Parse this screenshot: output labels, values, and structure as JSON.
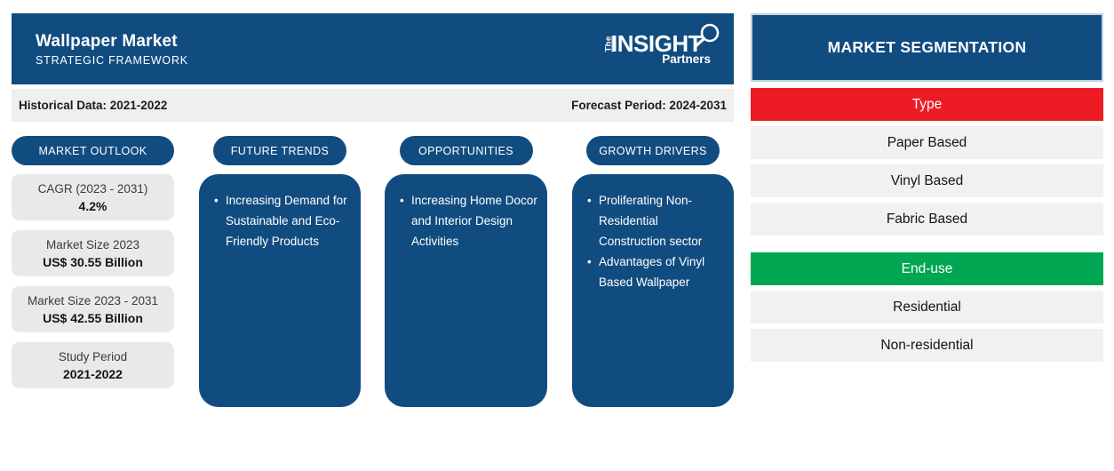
{
  "header": {
    "title": "Wallpaper Market",
    "subtitle": "STRATEGIC FRAMEWORK",
    "logo": {
      "the": "The",
      "insight": "INSIGHT",
      "partners": "Partners"
    }
  },
  "period_bar": {
    "historical": "Historical Data: 2021-2022",
    "forecast": "Forecast Period: 2024-2031"
  },
  "columns": {
    "market_outlook": {
      "label": "MARKET OUTLOOK",
      "stats": [
        {
          "label": "CAGR (2023 - 2031)",
          "value": "4.2%"
        },
        {
          "label": "Market Size 2023",
          "value": "US$ 30.55 Billion"
        },
        {
          "label": "Market Size 2023 - 2031",
          "value": "US$ 42.55 Billion"
        },
        {
          "label": "Study Period",
          "value": "2021-2022"
        }
      ]
    },
    "future_trends": {
      "label": "FUTURE TRENDS",
      "items": [
        "Increasing Demand for Sustainable and Eco-Friendly Products"
      ]
    },
    "opportunities": {
      "label": "OPPORTUNITIES",
      "items": [
        "Increasing Home Docor and Interior Design Activities"
      ]
    },
    "growth_drivers": {
      "label": "GROWTH DRIVERS",
      "items": [
        "Proliferating Non-Residential Construction sector",
        "Advantages of Vinyl Based Wallpaper"
      ]
    }
  },
  "segmentation": {
    "title": "MARKET SEGMENTATION",
    "groups": [
      {
        "label": "Type",
        "color": "#ed1c24",
        "items": [
          "Paper Based",
          "Vinyl Based",
          "Fabric Based"
        ]
      },
      {
        "label": "End-use",
        "color": "#00a651",
        "items": [
          "Residential",
          "Non-residential"
        ]
      }
    ]
  },
  "colors": {
    "navy": "#114c80",
    "red": "#ed1c24",
    "green": "#00a651",
    "panel_gray": "#efefef"
  }
}
